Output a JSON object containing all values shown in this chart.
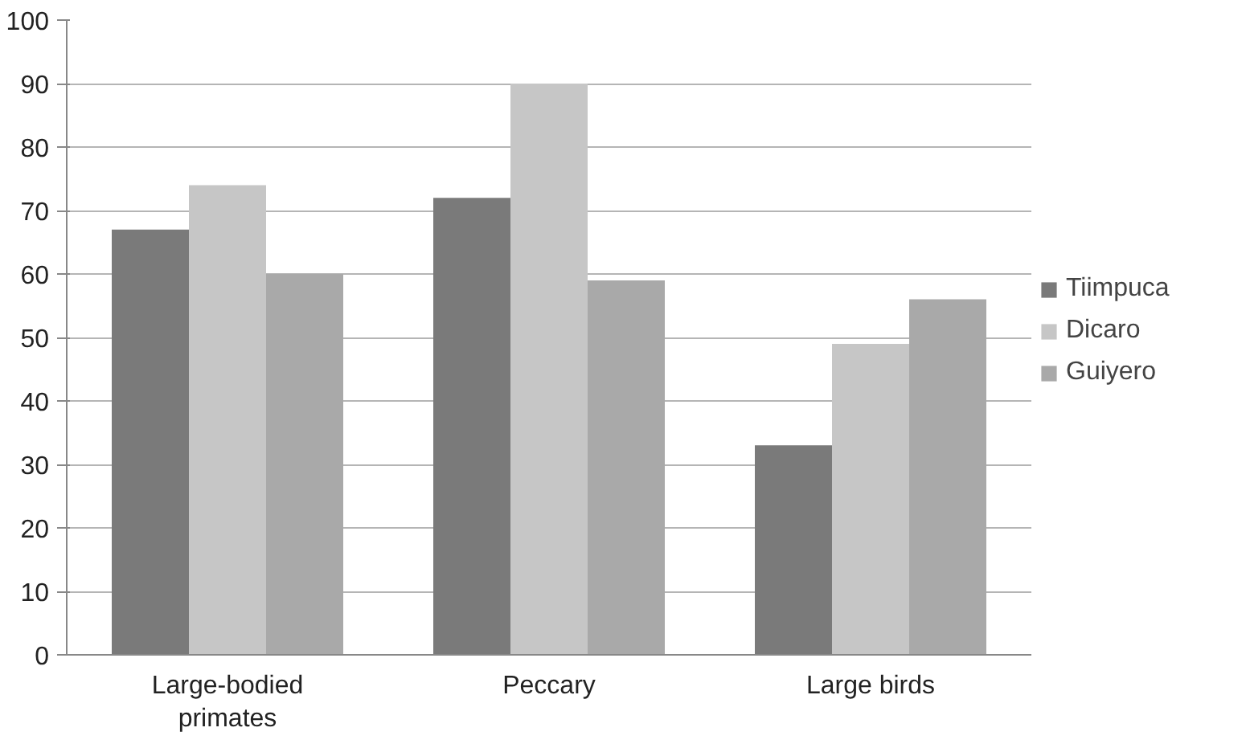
{
  "chart_data": {
    "type": "bar",
    "categories": [
      "Large-bodied primates",
      "Peccary",
      "Large birds"
    ],
    "series": [
      {
        "name": "Tiimpuca",
        "color": "#7a7a7a",
        "values": [
          67,
          72,
          33
        ]
      },
      {
        "name": "Dicaro",
        "color": "#c6c6c6",
        "values": [
          74,
          90,
          49
        ]
      },
      {
        "name": "Guiyero",
        "color": "#a9a9a9",
        "values": [
          60,
          59,
          56
        ]
      }
    ],
    "ylim": [
      0,
      100
    ],
    "yticks": [
      0,
      10,
      20,
      30,
      40,
      50,
      60,
      70,
      80,
      90,
      100
    ],
    "grid": "y",
    "legend": "right"
  }
}
